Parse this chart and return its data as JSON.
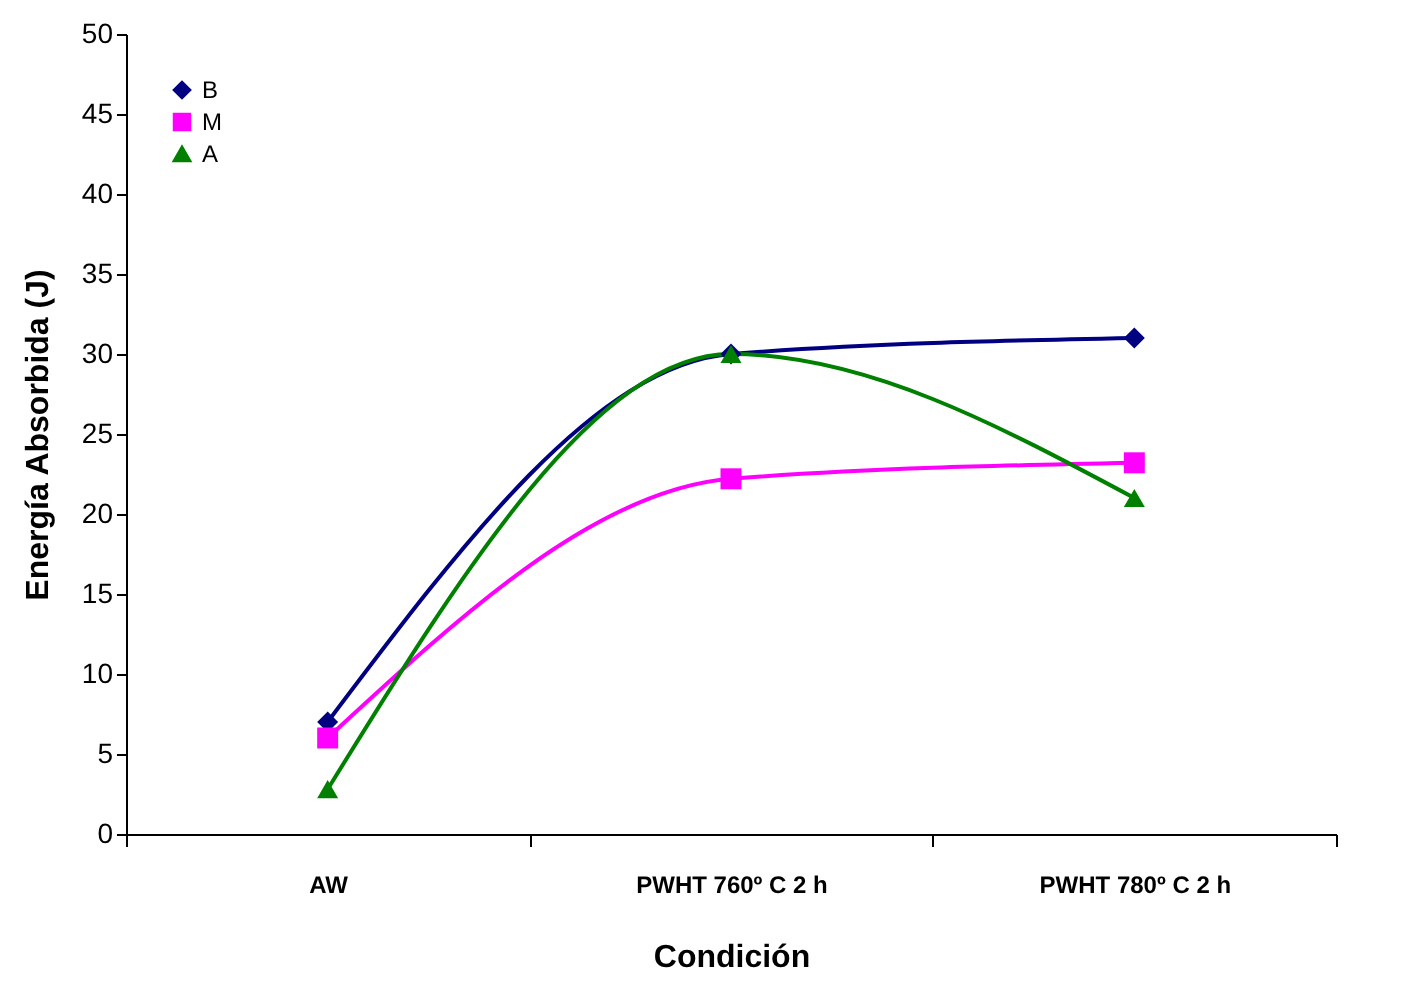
{
  "chart_data": {
    "type": "line",
    "xlabel": "Condición",
    "ylabel": "Energía Absorbida (J)",
    "categories": [
      "AW",
      "PWHT 760º C 2 h",
      "PWHT 780º C 2 h"
    ],
    "series": [
      {
        "name": "B",
        "color": "#000080",
        "marker": "diamond",
        "values": [
          7,
          30,
          31
        ]
      },
      {
        "name": "M",
        "color": "#ff00ff",
        "marker": "square",
        "values": [
          6,
          22.2,
          23.2
        ]
      },
      {
        "name": "A",
        "color": "#008000",
        "marker": "triangle",
        "values": [
          2.8,
          30,
          21
        ]
      }
    ],
    "ylim": [
      0,
      50
    ],
    "yticks": [
      0,
      5,
      10,
      15,
      20,
      25,
      30,
      35,
      40,
      45,
      50
    ],
    "grid": false,
    "legend": "top left"
  }
}
